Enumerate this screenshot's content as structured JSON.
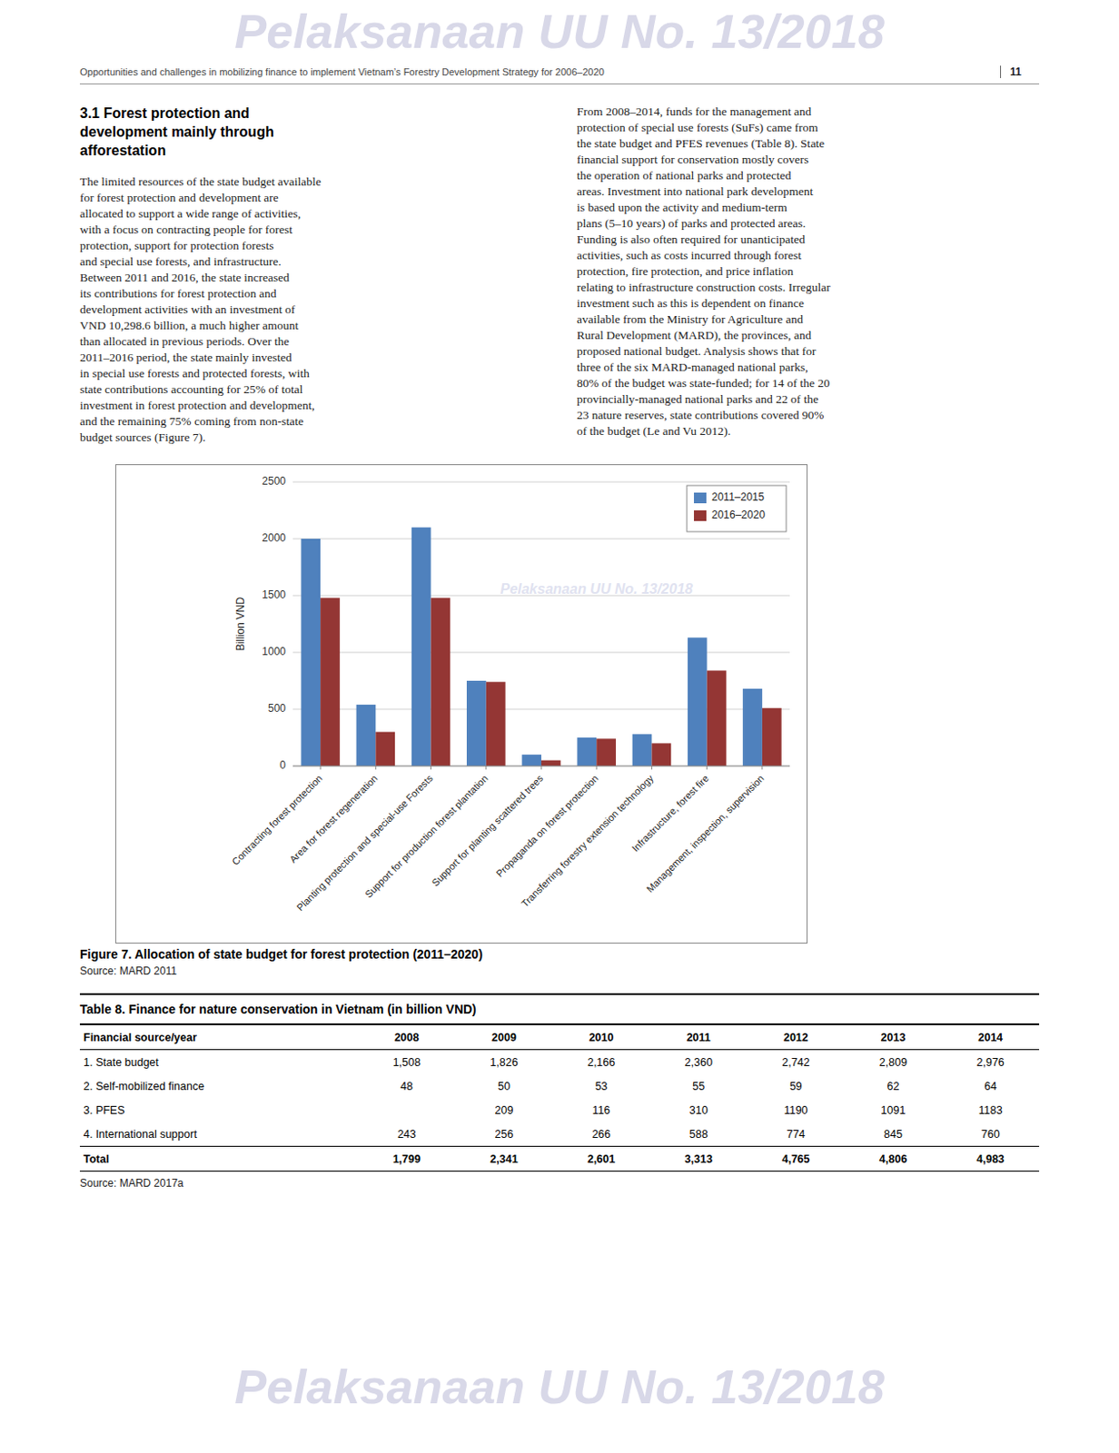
{
  "watermark": "Pelaksanaan UU No. 13/2018",
  "header_subtitle": "Opportunities and challenges in mobilizing finance to implement Vietnam’s Forestry Development Strategy for 2006–2020",
  "page_number": "11",
  "section_title": [
    "3.1  Forest protection and",
    "development mainly through",
    "afforestation"
  ],
  "left_text": [
    "The limited resources of the state budget available",
    "for forest protection and development are",
    "allocated to support a wide range of activities,",
    "with a focus on contracting people for forest",
    "protection, support for protection forests",
    "and special use forests, and infrastructure.",
    "Between 2011 and 2016, the state increased",
    "its contributions for forest protection and",
    "development activities with an investment of",
    "VND 10,298.6 billion, a much higher amount",
    "than allocated in previous periods. Over the",
    "2011–2016 period, the state mainly invested",
    "in special use forests and protected forests, with",
    "state contributions accounting for 25% of total",
    "investment in forest protection and development,",
    "and the remaining 75% coming from non-state",
    "budget sources (Figure 7)."
  ],
  "right_text": [
    "From 2008–2014, funds for the management and",
    "protection of special use forests (SuFs) came from",
    "the state budget and PFES revenues (Table 8). State",
    "financial support for conservation mostly covers",
    "the operation of national parks and protected",
    "areas. Investment into national park development",
    "is based upon the activity and medium-term",
    "plans (5–10 years) of parks and protected areas.",
    "Funding is also often required for unanticipated",
    "activities, such as costs incurred through forest",
    "protection, fire protection, and price inflation",
    "relating to infrastructure construction costs. Irregular",
    "investment such as this is dependent on finance",
    "available from the Ministry for Agriculture and",
    "Rural Development (MARD), the provinces, and",
    "proposed national budget. Analysis shows that for",
    "three of the six MARD-managed national parks,",
    "80% of the budget was state-funded; for 14 of the 20",
    "provincially-managed national parks and 22 of the",
    "23 nature reserves, state contributions covered 90%",
    "of the budget (Le and Vu 2012)."
  ],
  "chart_data": {
    "type": "bar",
    "categories": [
      "Contracting forest protection",
      "Area for forest regeneration",
      "Planting protection and special-use Forests",
      "Support for production forest plantation",
      "Support for planting scattered trees",
      "Propaganda on forest protection",
      "Transferring forestry extension technology",
      "Infrastructure, forest fire",
      "Management, inspection, supervision"
    ],
    "series": [
      {
        "name": "2011–2015",
        "color": "#4f81bd",
        "values": [
          2000,
          540,
          2100,
          750,
          100,
          250,
          280,
          1130,
          680
        ]
      },
      {
        "name": "2016–2020",
        "color": "#943634",
        "values": [
          1480,
          300,
          1480,
          740,
          50,
          240,
          200,
          840,
          510
        ]
      }
    ],
    "ylabel": "Billion VND",
    "ylim": [
      0,
      2500
    ],
    "yticks": [
      0,
      500,
      1000,
      1500,
      2000,
      2500
    ],
    "grid": true,
    "legend": "upper right",
    "annotations": [
      "Pelaksanaan UU No. 13/2018"
    ]
  },
  "figure_caption": "Figure 7.  Allocation of state budget for forest protection (2011–2020)",
  "figure_source": "Source: MARD 2011",
  "table": {
    "title": "Table 8.  Finance for nature conservation in Vietnam (in billion VND)",
    "headers": [
      "Financial source/year",
      "2008",
      "2009",
      "2010",
      "2011",
      "2012",
      "2013",
      "2014"
    ],
    "rows": [
      [
        "1. State budget",
        "1,508",
        "1,826",
        "2,166",
        "2,360",
        "2,742",
        "2,809",
        "2,976"
      ],
      [
        "2. Self-mobilized finance",
        "48",
        "50",
        "53",
        "55",
        "59",
        "62",
        "64"
      ],
      [
        "3. PFES",
        null,
        "209",
        "116",
        "310",
        "1190",
        "1091",
        "1183"
      ],
      [
        "4. International support",
        "243",
        "256",
        "266",
        "588",
        "774",
        "845",
        "760"
      ],
      [
        "Total",
        "1,799",
        "2,341",
        "2,601",
        "3,313",
        "4,765",
        "4,806",
        "4,983"
      ]
    ],
    "source": "Source: MARD 2017a"
  }
}
